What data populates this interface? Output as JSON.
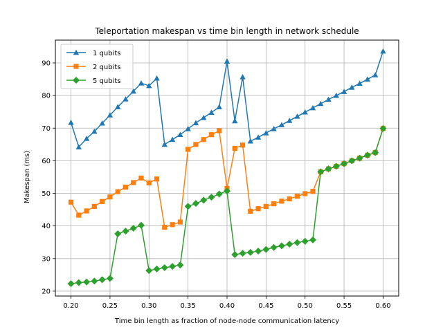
{
  "chart_data": {
    "type": "line",
    "title": "Teleportation makespan vs time bin length in network schedule",
    "xlabel": "Time bin length as fraction of node-node communication latency",
    "ylabel": "Makespan (ms)",
    "xlim": [
      0.18,
      0.62
    ],
    "ylim": [
      18.5,
      97
    ],
    "xticks": [
      0.2,
      0.25,
      0.3,
      0.35,
      0.4,
      0.45,
      0.5,
      0.55,
      0.6
    ],
    "xtick_labels": [
      "0.20",
      "0.25",
      "0.30",
      "0.35",
      "0.40",
      "0.45",
      "0.50",
      "0.55",
      "0.60"
    ],
    "yticks": [
      20,
      30,
      40,
      50,
      60,
      70,
      80,
      90
    ],
    "ytick_labels": [
      "20",
      "30",
      "40",
      "50",
      "60",
      "70",
      "80",
      "90"
    ],
    "grid": true,
    "legend_position": "top-left",
    "x": [
      0.2,
      0.21,
      0.22,
      0.23,
      0.24,
      0.25,
      0.26,
      0.27,
      0.28,
      0.29,
      0.3,
      0.31,
      0.32,
      0.33,
      0.34,
      0.35,
      0.36,
      0.37,
      0.38,
      0.39,
      0.4,
      0.41,
      0.42,
      0.43,
      0.44,
      0.45,
      0.46,
      0.47,
      0.48,
      0.49,
      0.5,
      0.51,
      0.52,
      0.53,
      0.54,
      0.55,
      0.56,
      0.57,
      0.58,
      0.59,
      0.6
    ],
    "series": [
      {
        "name": "1 qubits",
        "color": "#1f77b4",
        "marker": "triangle",
        "values": [
          71.7,
          64.2,
          66.8,
          69.0,
          71.5,
          74.0,
          76.5,
          78.9,
          81.3,
          83.8,
          83.0,
          85.3,
          65.0,
          66.5,
          68.0,
          69.8,
          71.6,
          73.2,
          74.8,
          76.5,
          90.5,
          72.2,
          85.7,
          66.0,
          67.2,
          68.5,
          69.8,
          71.0,
          72.3,
          73.6,
          74.9,
          76.2,
          77.5,
          78.8,
          80.0,
          81.2,
          82.5,
          83.7,
          85.0,
          86.3,
          93.6
        ]
      },
      {
        "name": "2 qubits",
        "color": "#ff7f0e",
        "marker": "square",
        "values": [
          47.3,
          43.3,
          44.6,
          46.0,
          47.5,
          48.9,
          50.5,
          51.9,
          53.3,
          54.7,
          53.2,
          54.4,
          39.6,
          40.4,
          41.2,
          63.5,
          65.0,
          66.5,
          68.0,
          69.2,
          51.5,
          63.8,
          64.8,
          44.5,
          45.3,
          46.0,
          46.8,
          47.6,
          48.3,
          49.1,
          49.9,
          50.6,
          56.6,
          57.5,
          58.3,
          59.1,
          60.0,
          60.8,
          61.7,
          62.5,
          69.9
        ]
      },
      {
        "name": "5 qubits",
        "color": "#2ca02c",
        "marker": "diamond",
        "values": [
          22.3,
          22.6,
          22.8,
          23.1,
          23.5,
          23.9,
          37.6,
          38.4,
          39.3,
          40.2,
          26.3,
          26.8,
          27.2,
          27.6,
          28.0,
          46.0,
          46.9,
          47.9,
          48.8,
          49.8,
          50.7,
          31.2,
          31.6,
          31.9,
          32.3,
          32.8,
          33.4,
          33.9,
          34.4,
          34.9,
          35.3,
          35.7,
          56.6,
          57.5,
          58.3,
          59.1,
          60.0,
          60.8,
          61.7,
          62.5,
          69.9
        ]
      }
    ]
  }
}
